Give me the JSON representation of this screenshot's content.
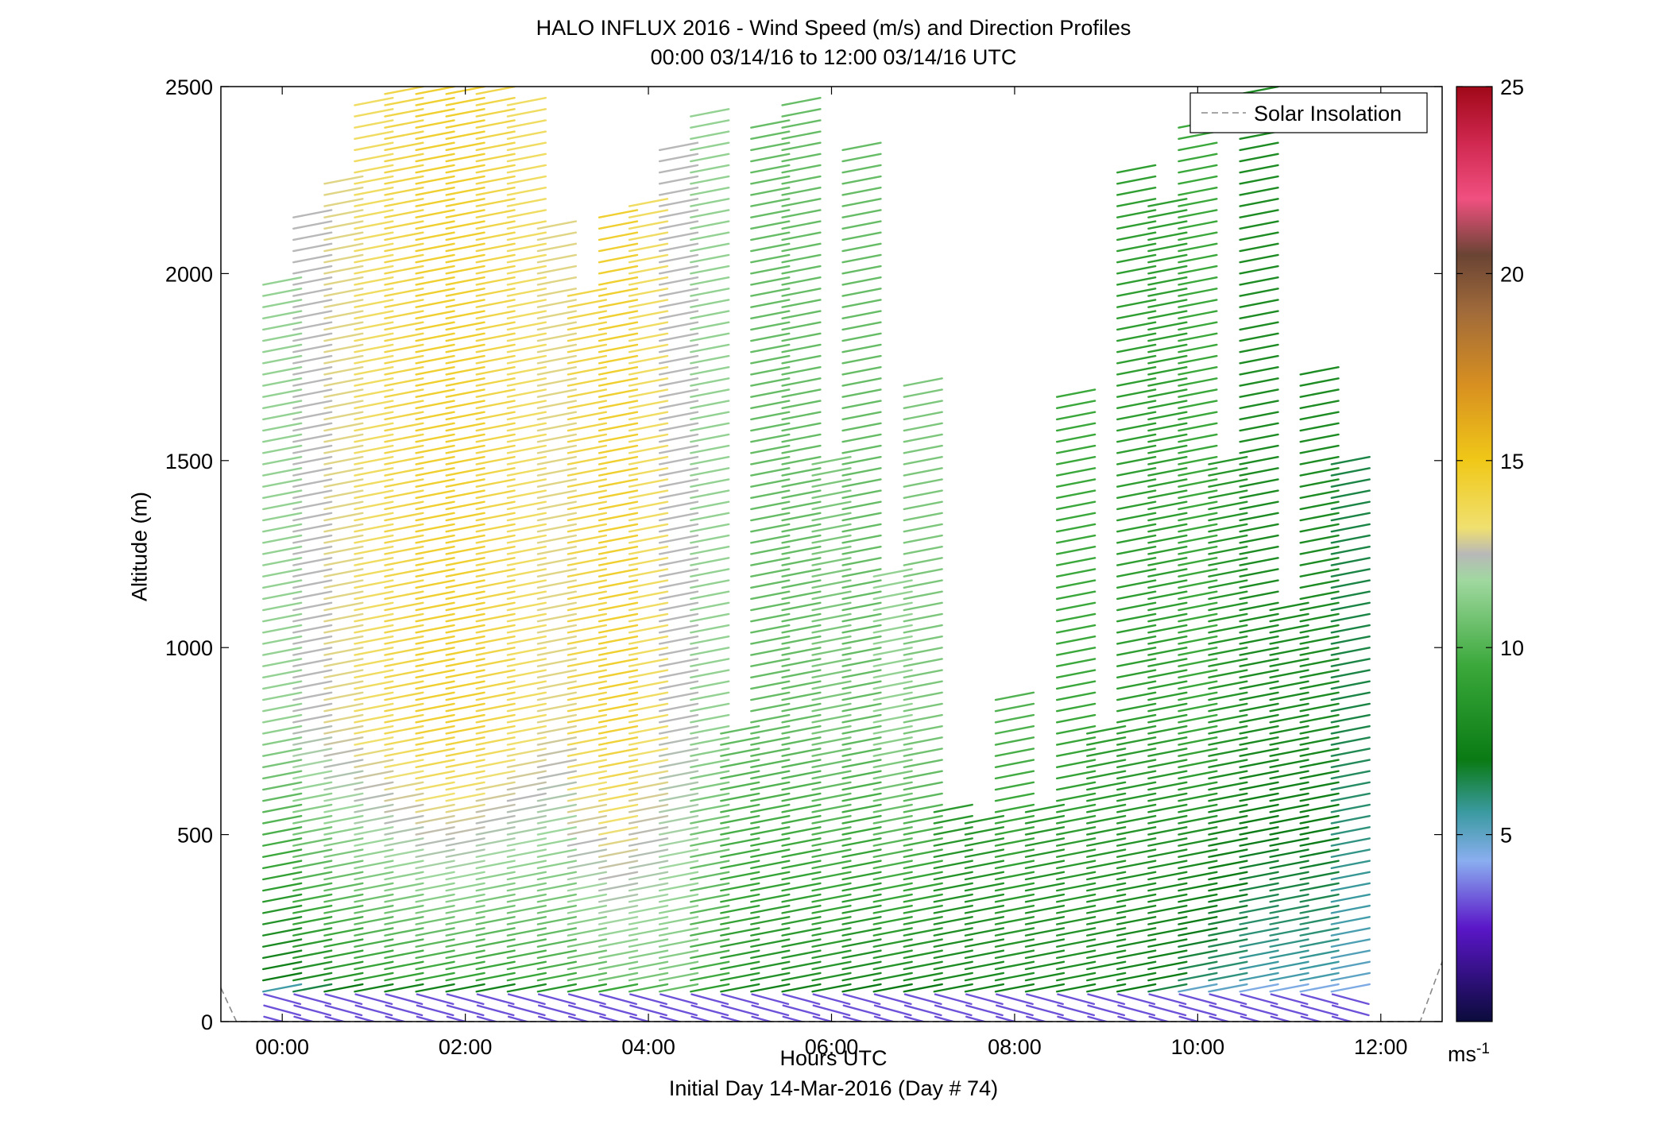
{
  "chart_data": {
    "type": "wind-barb-profile",
    "title": "HALO INFLUX 2016 - Wind Speed (m/s) and Direction Profiles",
    "subtitle": "00:00 03/14/16 to 12:00 03/14/16  UTC",
    "xlabel": "Hours UTC",
    "xlabel2": "Initial Day 14-Mar-2016 (Day # 74)",
    "ylabel": "Altitude (m)",
    "xlim": [
      -0.67,
      12.67
    ],
    "ylim": [
      0,
      2500
    ],
    "x_ticks": [
      {
        "value": 0,
        "label": "00:00"
      },
      {
        "value": 2,
        "label": "02:00"
      },
      {
        "value": 4,
        "label": "04:00"
      },
      {
        "value": 6,
        "label": "06:00"
      },
      {
        "value": 8,
        "label": "08:00"
      },
      {
        "value": 10,
        "label": "10:00"
      },
      {
        "value": 12,
        "label": "12:00"
      }
    ],
    "y_ticks": [
      {
        "value": 0,
        "label": "0"
      },
      {
        "value": 500,
        "label": "500"
      },
      {
        "value": 1000,
        "label": "1000"
      },
      {
        "value": 1500,
        "label": "1500"
      },
      {
        "value": 2000,
        "label": "2000"
      },
      {
        "value": 2500,
        "label": "2500"
      }
    ],
    "legend": {
      "entries": [
        "Solar Insolation"
      ],
      "placement": "top-right"
    },
    "colorbar": {
      "range": [
        0,
        25
      ],
      "ticks": [
        {
          "value": 5,
          "label": "5"
        },
        {
          "value": 10,
          "label": "10"
        },
        {
          "value": 15,
          "label": "15"
        },
        {
          "value": 20,
          "label": "20"
        },
        {
          "value": 25,
          "label": "25"
        }
      ],
      "unit": "ms",
      "unit_exp": "-1",
      "stops": [
        {
          "v": 0,
          "c": "#0b0b3b"
        },
        {
          "v": 2.5,
          "c": "#5a16c8"
        },
        {
          "v": 4.3,
          "c": "#8aaef0"
        },
        {
          "v": 5.6,
          "c": "#3a9aa0"
        },
        {
          "v": 7.0,
          "c": "#0a7a14"
        },
        {
          "v": 9.5,
          "c": "#3aa83a"
        },
        {
          "v": 11.8,
          "c": "#a0d8a0"
        },
        {
          "v": 12.5,
          "c": "#b8b8b8"
        },
        {
          "v": 13.2,
          "c": "#f0e070"
        },
        {
          "v": 15.0,
          "c": "#f0c818"
        },
        {
          "v": 17.0,
          "c": "#d89020"
        },
        {
          "v": 19.0,
          "c": "#a06a3a"
        },
        {
          "v": 20.5,
          "c": "#6a4434"
        },
        {
          "v": 22.0,
          "c": "#f05080"
        },
        {
          "v": 23.5,
          "c": "#d02850"
        },
        {
          "v": 25.0,
          "c": "#a00818"
        }
      ]
    },
    "solar_insolation": [
      {
        "x": -0.67,
        "y": 90
      },
      {
        "x": -0.5,
        "y": 0
      },
      {
        "x": 12.43,
        "y": 0
      },
      {
        "x": 12.67,
        "y": 160
      }
    ],
    "profiles": [
      {
        "t": 0.0,
        "top": 1980,
        "base_speed": 5.5,
        "upper_speed": 11.5
      },
      {
        "t": 0.33,
        "top": 2160,
        "base_speed": 6.5,
        "upper_speed": 12.5
      },
      {
        "t": 0.67,
        "top": 2260,
        "base_speed": 7.0,
        "upper_speed": 13.0
      },
      {
        "t": 1.0,
        "top": 2460,
        "base_speed": 7.5,
        "upper_speed": 13.5
      },
      {
        "t": 1.33,
        "top": 2500,
        "base_speed": 7.5,
        "upper_speed": 14.0
      },
      {
        "t": 1.67,
        "top": 2500,
        "base_speed": 7.5,
        "upper_speed": 14.5
      },
      {
        "t": 2.0,
        "top": 2500,
        "base_speed": 7.5,
        "upper_speed": 14.5
      },
      {
        "t": 2.33,
        "top": 2500,
        "base_speed": 7.5,
        "upper_speed": 14.0
      },
      {
        "t": 2.67,
        "top": 2460,
        "base_speed": 8.0,
        "upper_speed": 13.5
      },
      {
        "t": 3.0,
        "top": 2130,
        "base_speed": 8.5,
        "upper_speed": 13.0
      },
      {
        "t": 3.33,
        "top": 1950,
        "base_speed": 9.0,
        "upper_speed": 14.0
      },
      {
        "t": 3.67,
        "top": 2170,
        "base_speed": 9.5,
        "upper_speed": 14.5
      },
      {
        "t": 4.0,
        "top": 2200,
        "base_speed": 10.0,
        "upper_speed": 13.5
      },
      {
        "t": 4.33,
        "top": 2360,
        "base_speed": 10.5,
        "upper_speed": 12.5
      },
      {
        "t": 4.67,
        "top": 2440,
        "base_speed": 9.0,
        "upper_speed": 11.5
      },
      {
        "t": 5.0,
        "top": 780,
        "base_speed": 8.0,
        "upper_speed": 10.5
      },
      {
        "t": 5.33,
        "top": 2420,
        "base_speed": 7.5,
        "upper_speed": 10.5
      },
      {
        "t": 5.67,
        "top": 2480,
        "base_speed": 7.5,
        "upper_speed": 10.5
      },
      {
        "t": 6.0,
        "top": 1500,
        "base_speed": 7.5,
        "upper_speed": 11.0
      },
      {
        "t": 6.33,
        "top": 2340,
        "base_speed": 7.0,
        "upper_speed": 10.5
      },
      {
        "t": 6.67,
        "top": 1220,
        "base_speed": 7.0,
        "upper_speed": 11.5
      },
      {
        "t": 7.0,
        "top": 1720,
        "base_speed": 7.0,
        "upper_speed": 11.0
      },
      {
        "t": 7.33,
        "top": 590,
        "base_speed": 7.5,
        "upper_speed": 9.0
      },
      {
        "t": 7.67,
        "top": 560,
        "base_speed": 7.5,
        "upper_speed": 9.0
      },
      {
        "t": 8.0,
        "top": 880,
        "base_speed": 7.5,
        "upper_speed": 10.0
      },
      {
        "t": 8.33,
        "top": 570,
        "base_speed": 7.5,
        "upper_speed": 9.0
      },
      {
        "t": 8.67,
        "top": 1690,
        "base_speed": 7.5,
        "upper_speed": 9.5
      },
      {
        "t": 9.0,
        "top": 790,
        "base_speed": 7.5,
        "upper_speed": 9.0
      },
      {
        "t": 9.33,
        "top": 2280,
        "base_speed": 7.0,
        "upper_speed": 9.0
      },
      {
        "t": 9.67,
        "top": 2200,
        "base_speed": 6.5,
        "upper_speed": 9.0
      },
      {
        "t": 10.0,
        "top": 2420,
        "base_speed": 5.0,
        "upper_speed": 9.5
      },
      {
        "t": 10.33,
        "top": 1500,
        "base_speed": 5.0,
        "upper_speed": 8.5
      },
      {
        "t": 10.67,
        "top": 2500,
        "base_speed": 4.5,
        "upper_speed": 8.0
      },
      {
        "t": 11.0,
        "top": 1110,
        "base_speed": 4.5,
        "upper_speed": 8.0
      },
      {
        "t": 11.33,
        "top": 1740,
        "base_speed": 4.5,
        "upper_speed": 8.0
      },
      {
        "t": 11.67,
        "top": 1500,
        "base_speed": 4.5,
        "upper_speed": 6.5
      }
    ],
    "profile_bottom_m": 0,
    "profile_spacing_m": 30,
    "wind_direction_deg": 250
  }
}
